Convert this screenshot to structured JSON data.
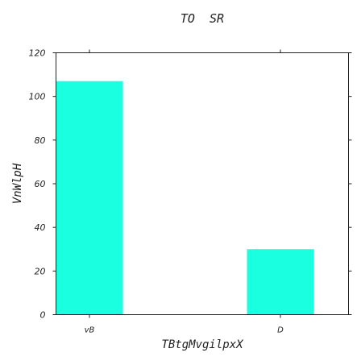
{
  "chart_data": {
    "type": "bar",
    "title": "TO  SR",
    "xlabel": "TBtgMvgilpxX",
    "ylabel": "VnWlpH",
    "categories": [
      "vB",
      "D"
    ],
    "values": [
      107,
      30
    ],
    "ylim": [
      0,
      120
    ],
    "yticks": [
      0,
      20,
      40,
      60,
      80,
      100,
      120
    ],
    "bar_color": "#19ffdf",
    "grid": false
  }
}
